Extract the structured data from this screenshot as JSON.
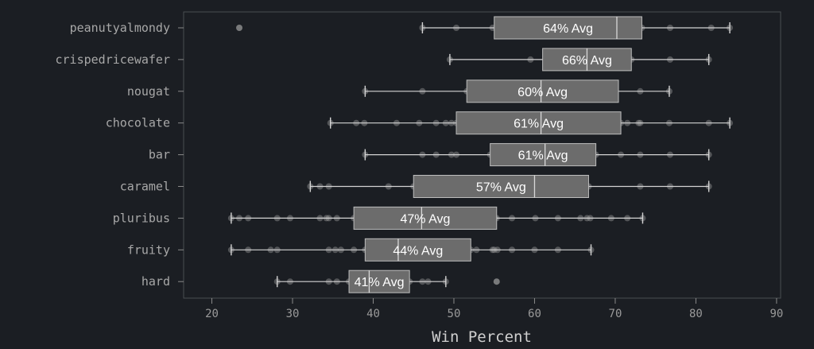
{
  "chart_data": {
    "type": "boxplot",
    "xlabel": "Win Percent",
    "xlim": [
      16.5,
      90.5
    ],
    "xticks": [
      20,
      30,
      40,
      50,
      60,
      70,
      80,
      90
    ],
    "grid": false,
    "colors": {
      "background": "#1b1e23",
      "frame": "#4a4d52",
      "box_fill": "#6c6c6c",
      "box_edge": "#bdbdbd",
      "whisker": "#d4d4d4",
      "points": "#9a9a9a"
    },
    "categories": [
      {
        "name": "peanutyalmondy",
        "avg_label": "64% Avg",
        "whisker_low": 46.1,
        "q1": 55.0,
        "median": 70.2,
        "q3": 73.3,
        "whisker_high": 84.2,
        "outliers": [
          23.4
        ],
        "points": [
          46.1,
          50.3,
          54.8,
          59.8,
          63.4,
          67.0,
          70.2,
          71.5,
          72.3,
          73.3,
          76.8,
          81.9,
          84.2
        ]
      },
      {
        "name": "crispedricewafer",
        "avg_label": "66% Avg",
        "whisker_low": 49.5,
        "q1": 61.0,
        "median": 66.5,
        "q3": 72.0,
        "whisker_high": 81.6,
        "outliers": [],
        "points": [
          49.5,
          59.5,
          62.3,
          66.5,
          72.0,
          76.8,
          81.6
        ]
      },
      {
        "name": "nougat",
        "avg_label": "60% Avg",
        "whisker_low": 39.0,
        "q1": 51.6,
        "median": 60.8,
        "q3": 70.4,
        "whisker_high": 76.7,
        "outliers": [],
        "points": [
          39.0,
          46.1,
          51.6,
          60.8,
          67.6,
          73.1,
          76.7
        ]
      },
      {
        "name": "chocolate",
        "avg_label": "61% Avg",
        "whisker_low": 34.7,
        "q1": 50.3,
        "median": 60.8,
        "q3": 70.7,
        "whisker_high": 84.2,
        "outliers": [],
        "points": [
          34.7,
          37.9,
          38.9,
          42.9,
          45.7,
          47.8,
          49.0,
          49.7,
          50.3,
          54.5,
          55.1,
          56.5,
          57.2,
          59.2,
          60.8,
          62.3,
          64.5,
          65.5,
          66.5,
          67.0,
          69.5,
          70.7,
          71.5,
          72.9,
          73.1,
          76.7,
          81.6,
          84.2
        ]
      },
      {
        "name": "bar",
        "avg_label": "61% Avg",
        "whisker_low": 39.0,
        "q1": 54.5,
        "median": 61.3,
        "q3": 67.6,
        "whisker_high": 81.6,
        "outliers": [],
        "points": [
          39.0,
          46.1,
          47.8,
          49.7,
          50.3,
          54.5,
          56.5,
          59.2,
          61.3,
          64.5,
          66.5,
          67.0,
          67.6,
          70.7,
          73.1,
          76.8,
          81.6
        ]
      },
      {
        "name": "caramel",
        "avg_label": "57% Avg",
        "whisker_low": 32.2,
        "q1": 45.0,
        "median": 60.0,
        "q3": 66.7,
        "whisker_high": 81.6,
        "outliers": [],
        "points": [
          32.2,
          33.4,
          34.5,
          41.9,
          45.0,
          54.5,
          57.2,
          59.8,
          60.0,
          64.5,
          65.7,
          66.7,
          73.1,
          76.8,
          81.6
        ]
      },
      {
        "name": "pluribus",
        "avg_label": "47% Avg",
        "whisker_low": 22.4,
        "q1": 37.6,
        "median": 46.0,
        "q3": 55.3,
        "whisker_high": 73.4,
        "outliers": [],
        "points": [
          22.4,
          23.4,
          24.5,
          28.1,
          29.7,
          33.4,
          34.2,
          34.5,
          35.5,
          37.6,
          38.2,
          39.0,
          41.3,
          42.1,
          42.9,
          44.0,
          45.5,
          46.0,
          47.0,
          48.5,
          52.3,
          54.5,
          55.1,
          55.3,
          57.2,
          60.1,
          62.9,
          65.7,
          66.5,
          66.9,
          69.5,
          71.5,
          73.4
        ]
      },
      {
        "name": "fruity",
        "avg_label": "44% Avg",
        "whisker_low": 22.4,
        "q1": 39.0,
        "median": 43.1,
        "q3": 52.1,
        "whisker_high": 67.0,
        "outliers": [],
        "points": [
          22.4,
          24.5,
          27.3,
          28.1,
          34.5,
          35.3,
          36.0,
          37.6,
          39.0,
          39.3,
          41.3,
          43.1,
          45.5,
          47.0,
          48.9,
          52.1,
          52.8,
          54.8,
          55.0,
          55.4,
          57.2,
          60.0,
          62.9,
          67.0
        ]
      },
      {
        "name": "hard",
        "avg_label": "41% Avg",
        "whisker_low": 28.1,
        "q1": 37.0,
        "median": 39.5,
        "q3": 44.5,
        "whisker_high": 49.0,
        "outliers": [
          55.3
        ],
        "points": [
          28.1,
          29.7,
          34.5,
          35.5,
          37.0,
          39.0,
          39.5,
          44.5,
          46.1,
          46.8,
          49.0
        ]
      }
    ]
  }
}
